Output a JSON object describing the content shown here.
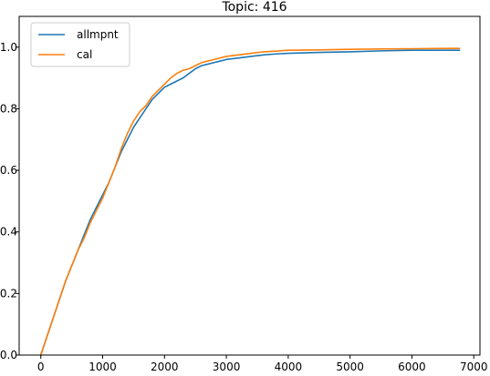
{
  "chart_data": {
    "type": "line",
    "title": "Topic: 416",
    "xlabel": "",
    "ylabel": "",
    "xlim": [
      -350,
      7100
    ],
    "ylim": [
      0.0,
      1.1
    ],
    "xticks": [
      0,
      1000,
      2000,
      3000,
      4000,
      5000,
      6000,
      7000
    ],
    "yticks": [
      0.0,
      0.2,
      0.4,
      0.6,
      0.8,
      1.0
    ],
    "xtick_labels": [
      "0",
      "1000",
      "2000",
      "3000",
      "4000",
      "5000",
      "6000",
      "7000"
    ],
    "ytick_labels": [
      "0.0",
      "0.2",
      "0.4",
      "0.6",
      "0.8",
      "1.0"
    ],
    "grid": false,
    "legend_position": "top-left",
    "series": [
      {
        "name": "allmpnt",
        "color": "#1f77b4",
        "x": [
          0,
          100,
          200,
          300,
          400,
          500,
          600,
          700,
          800,
          900,
          1000,
          1100,
          1200,
          1300,
          1400,
          1500,
          1600,
          1700,
          1800,
          1900,
          2000,
          2100,
          2200,
          2300,
          2400,
          2500,
          2600,
          2700,
          2800,
          2900,
          3000,
          3200,
          3400,
          3600,
          3800,
          4000,
          4500,
          5000,
          5500,
          6000,
          6500,
          6770
        ],
        "y": [
          0.0,
          0.06,
          0.12,
          0.18,
          0.24,
          0.29,
          0.34,
          0.39,
          0.44,
          0.48,
          0.52,
          0.56,
          0.61,
          0.66,
          0.7,
          0.74,
          0.77,
          0.8,
          0.83,
          0.85,
          0.87,
          0.88,
          0.89,
          0.9,
          0.915,
          0.93,
          0.94,
          0.945,
          0.95,
          0.955,
          0.96,
          0.965,
          0.97,
          0.975,
          0.978,
          0.98,
          0.983,
          0.985,
          0.988,
          0.99,
          0.99,
          0.99
        ]
      },
      {
        "name": "cal",
        "color": "#ff7f0e",
        "x": [
          0,
          100,
          200,
          300,
          400,
          500,
          600,
          700,
          800,
          900,
          1000,
          1100,
          1200,
          1300,
          1400,
          1500,
          1600,
          1700,
          1800,
          1900,
          2000,
          2100,
          2200,
          2300,
          2400,
          2500,
          2600,
          2700,
          2800,
          2900,
          3000,
          3200,
          3400,
          3600,
          3800,
          4000,
          4500,
          5000,
          5500,
          6000,
          6500,
          6770
        ],
        "y": [
          0.0,
          0.06,
          0.12,
          0.18,
          0.24,
          0.29,
          0.34,
          0.38,
          0.43,
          0.47,
          0.51,
          0.56,
          0.61,
          0.67,
          0.72,
          0.76,
          0.79,
          0.81,
          0.84,
          0.86,
          0.88,
          0.9,
          0.915,
          0.925,
          0.93,
          0.94,
          0.95,
          0.955,
          0.96,
          0.965,
          0.97,
          0.975,
          0.98,
          0.985,
          0.987,
          0.99,
          0.991,
          0.993,
          0.994,
          0.995,
          0.996,
          0.996
        ]
      }
    ]
  }
}
